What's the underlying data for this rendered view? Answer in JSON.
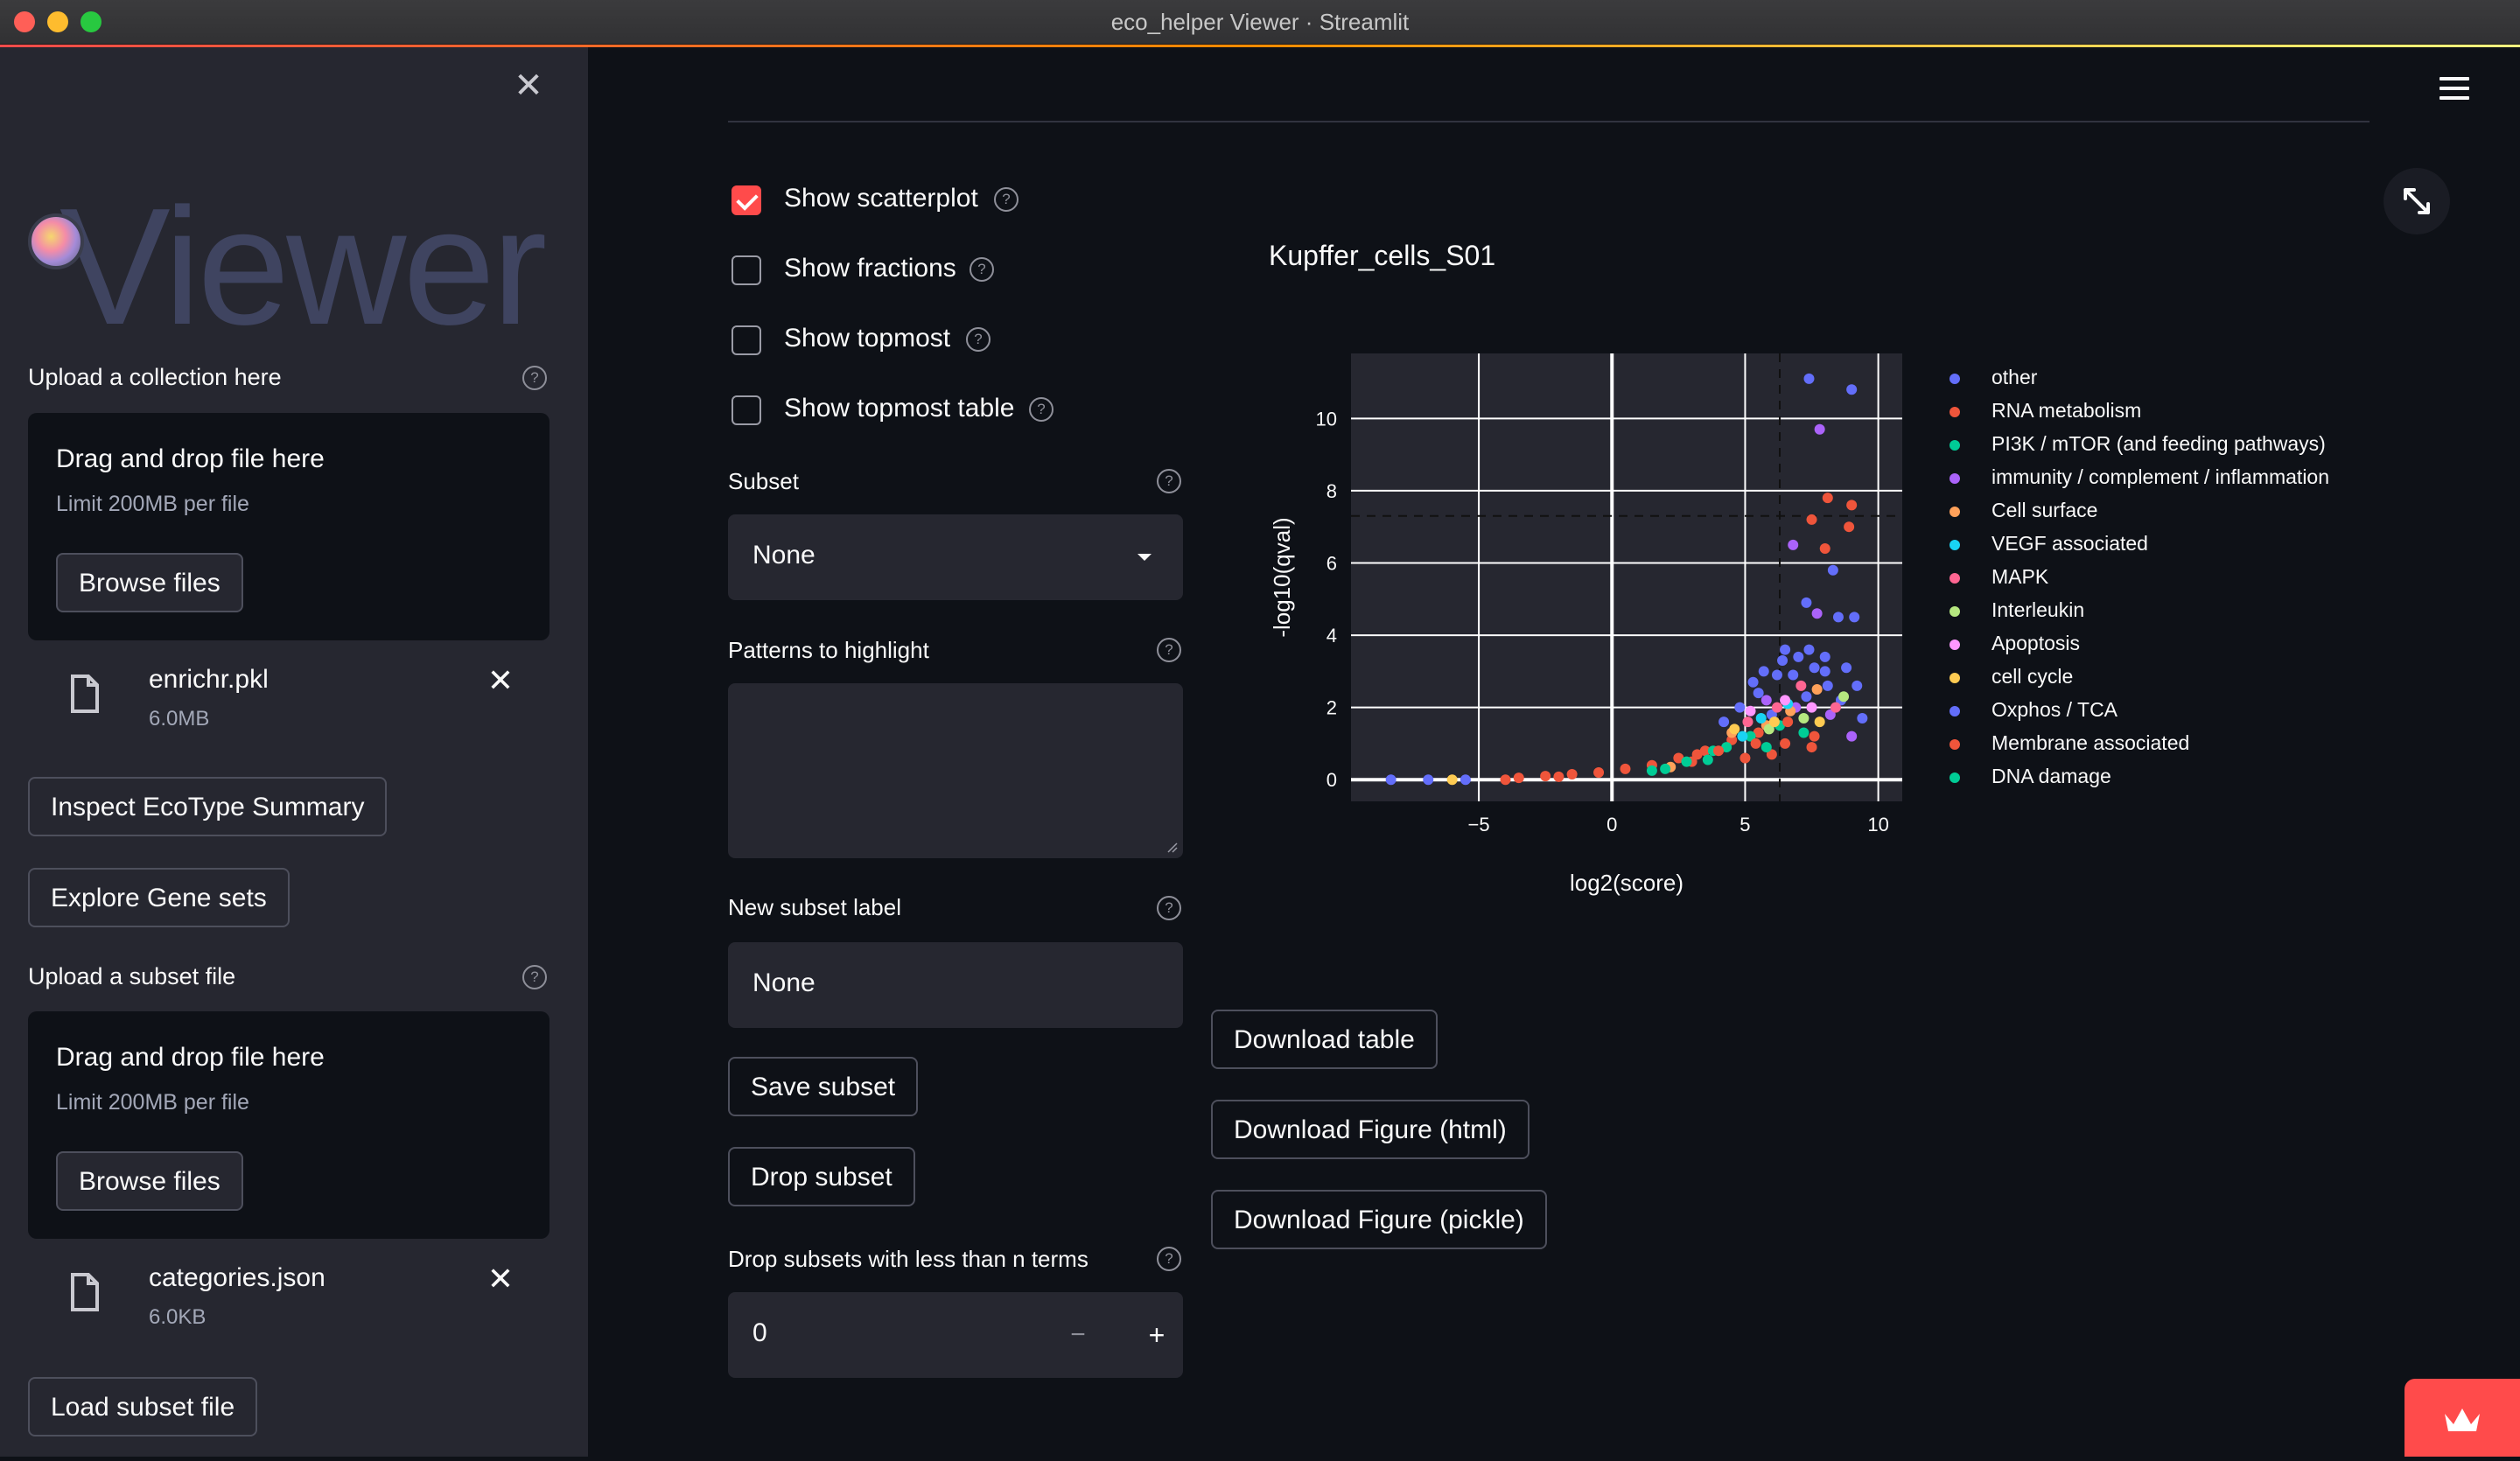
{
  "window": {
    "title": "eco_helper Viewer · Streamlit"
  },
  "sidebar": {
    "logo_text": "Viewer",
    "collection": {
      "label": "Upload a collection here",
      "drop_title": "Drag and drop file here",
      "limit": "Limit 200MB per file",
      "browse_label": "Browse files",
      "file": {
        "name": "enrichr.pkl",
        "size": "6.0MB"
      }
    },
    "inspect_button": "Inspect EcoType Summary",
    "explore_button": "Explore Gene sets",
    "subset_upload": {
      "label": "Upload a subset file",
      "drop_title": "Drag and drop file here",
      "limit": "Limit 200MB per file",
      "browse_label": "Browse files",
      "file": {
        "name": "categories.json",
        "size": "6.0KB"
      }
    },
    "load_button": "Load subset file"
  },
  "main": {
    "checkboxes": [
      {
        "label": "Show scatterplot",
        "checked": true
      },
      {
        "label": "Show fractions",
        "checked": false
      },
      {
        "label": "Show topmost",
        "checked": false
      },
      {
        "label": "Show topmost table",
        "checked": false
      }
    ],
    "subset": {
      "label": "Subset",
      "value": "None"
    },
    "patterns": {
      "label": "Patterns to highlight",
      "value": ""
    },
    "new_subset": {
      "label": "New subset label",
      "value": "None"
    },
    "save_button": "Save subset",
    "drop_button": "Drop subset",
    "drop_min": {
      "label": "Drop subsets with less than n terms",
      "value": "0",
      "minus": "−",
      "plus": "+"
    },
    "download_table": "Download table",
    "download_html": "Download Figure (html)",
    "download_pickle": "Download Figure (pickle)"
  },
  "colors": {
    "accent": "#ff4b4b",
    "background": "#0e1117",
    "sidebar": "#262730",
    "plot_bg": "#262730"
  },
  "chart_data": {
    "type": "scatter",
    "title": "Kupffer_cells_S01",
    "xlabel": "log2(score)",
    "ylabel": "-log10(qval)",
    "xlim": [
      -9.8,
      10.9
    ],
    "ylim": [
      -0.6,
      11.8
    ],
    "xticks": [
      -5,
      0,
      5,
      10
    ],
    "xtick_labels": [
      "−5",
      "0",
      "5",
      "10"
    ],
    "yticks": [
      0,
      2,
      4,
      6,
      8,
      10
    ],
    "grid": true,
    "threshold_x": 6.3,
    "threshold_y": 7.3,
    "legend_position": "right",
    "series": [
      {
        "name": "other",
        "color": "#636efa",
        "points": [
          [
            7.4,
            11.1
          ],
          [
            9.0,
            10.8
          ],
          [
            7.3,
            4.9
          ],
          [
            8.3,
            5.8
          ],
          [
            9.1,
            4.5
          ],
          [
            8.5,
            4.5
          ],
          [
            6.5,
            3.6
          ],
          [
            7.0,
            3.4
          ],
          [
            7.6,
            3.1
          ],
          [
            8.1,
            2.6
          ],
          [
            8.6,
            2.2
          ],
          [
            9.2,
            2.6
          ],
          [
            6.2,
            2.9
          ],
          [
            5.5,
            2.4
          ],
          [
            4.8,
            2.0
          ],
          [
            4.2,
            1.6
          ],
          [
            -8.3,
            0.0
          ],
          [
            -6.9,
            0.0
          ],
          [
            -5.5,
            0.0
          ],
          [
            6.0,
            1.8
          ],
          [
            7.3,
            2.3
          ],
          [
            8.0,
            3.0
          ],
          [
            5.3,
            2.7
          ],
          [
            6.8,
            2.9
          ]
        ]
      },
      {
        "name": "RNA metabolism",
        "color": "#ef553b",
        "points": [
          [
            8.1,
            7.8
          ],
          [
            8.9,
            7.0
          ],
          [
            9.0,
            7.6
          ],
          [
            7.5,
            7.2
          ],
          [
            8.0,
            6.4
          ],
          [
            -3.5,
            0.05
          ],
          [
            -2.5,
            0.1
          ],
          [
            -1.5,
            0.15
          ],
          [
            -0.5,
            0.2
          ],
          [
            0.5,
            0.3
          ],
          [
            1.5,
            0.4
          ],
          [
            2.5,
            0.6
          ],
          [
            3.5,
            0.8
          ],
          [
            4.5,
            1.1
          ],
          [
            5.5,
            1.3
          ],
          [
            6.5,
            1.0
          ],
          [
            7.5,
            0.9
          ],
          [
            6.0,
            0.7
          ],
          [
            5.0,
            0.6
          ],
          [
            -4.0,
            0.0
          ],
          [
            -2.0,
            0.08
          ],
          [
            3.0,
            0.5
          ]
        ]
      },
      {
        "name": "PI3K / mTOR (and feeding pathways)",
        "color": "#00cc96",
        "points": [
          [
            2.8,
            0.5
          ],
          [
            3.8,
            0.8
          ],
          [
            4.3,
            0.9
          ],
          [
            5.2,
            1.2
          ],
          [
            6.3,
            1.5
          ],
          [
            7.2,
            1.3
          ]
        ]
      },
      {
        "name": "immunity / complement / inflammation",
        "color": "#ab63fa",
        "points": [
          [
            7.8,
            9.7
          ],
          [
            6.8,
            6.5
          ],
          [
            7.7,
            4.6
          ],
          [
            6.9,
            2.0
          ],
          [
            8.2,
            1.8
          ],
          [
            5.8,
            2.2
          ],
          [
            9.0,
            1.2
          ]
        ]
      },
      {
        "name": "Cell surface",
        "color": "#ffa15a",
        "points": [
          [
            4.5,
            1.3
          ],
          [
            5.8,
            1.5
          ],
          [
            6.7,
            1.9
          ],
          [
            2.2,
            0.35
          ],
          [
            7.7,
            2.5
          ]
        ]
      },
      {
        "name": "VEGF associated",
        "color": "#19d3f3",
        "points": [
          [
            5.6,
            1.7
          ],
          [
            6.6,
            2.1
          ],
          [
            4.9,
            1.2
          ]
        ]
      },
      {
        "name": "MAPK",
        "color": "#ff6692",
        "points": [
          [
            6.2,
            2.0
          ],
          [
            7.1,
            2.6
          ],
          [
            5.1,
            1.6
          ],
          [
            8.4,
            2.0
          ]
        ]
      },
      {
        "name": "Interleukin",
        "color": "#b6e880",
        "points": [
          [
            5.9,
            1.4
          ],
          [
            7.2,
            1.7
          ],
          [
            8.7,
            2.3
          ]
        ]
      },
      {
        "name": "Apoptosis",
        "color": "#ff97ff",
        "points": [
          [
            5.2,
            1.9
          ],
          [
            6.5,
            2.2
          ],
          [
            7.5,
            2.0
          ]
        ]
      },
      {
        "name": "cell cycle",
        "color": "#fecb52",
        "points": [
          [
            -6.0,
            0.0
          ],
          [
            4.6,
            1.4
          ],
          [
            6.1,
            1.6
          ],
          [
            7.8,
            1.6
          ]
        ]
      },
      {
        "name": "Oxphos / TCA",
        "color": "#636efa",
        "points": [
          [
            6.4,
            3.3
          ],
          [
            7.4,
            3.6
          ],
          [
            8.0,
            3.4
          ],
          [
            5.7,
            3.0
          ],
          [
            9.4,
            1.7
          ],
          [
            8.8,
            3.1
          ]
        ]
      },
      {
        "name": "Membrane associated",
        "color": "#ef553b",
        "points": [
          [
            6.6,
            1.6
          ],
          [
            7.6,
            1.2
          ],
          [
            5.4,
            1.0
          ],
          [
            4.0,
            0.8
          ],
          [
            3.2,
            0.7
          ]
        ]
      },
      {
        "name": "DNA damage",
        "color": "#00cc96",
        "points": [
          [
            1.5,
            0.25
          ],
          [
            2.0,
            0.3
          ],
          [
            3.6,
            0.55
          ],
          [
            5.8,
            0.9
          ]
        ]
      }
    ]
  }
}
